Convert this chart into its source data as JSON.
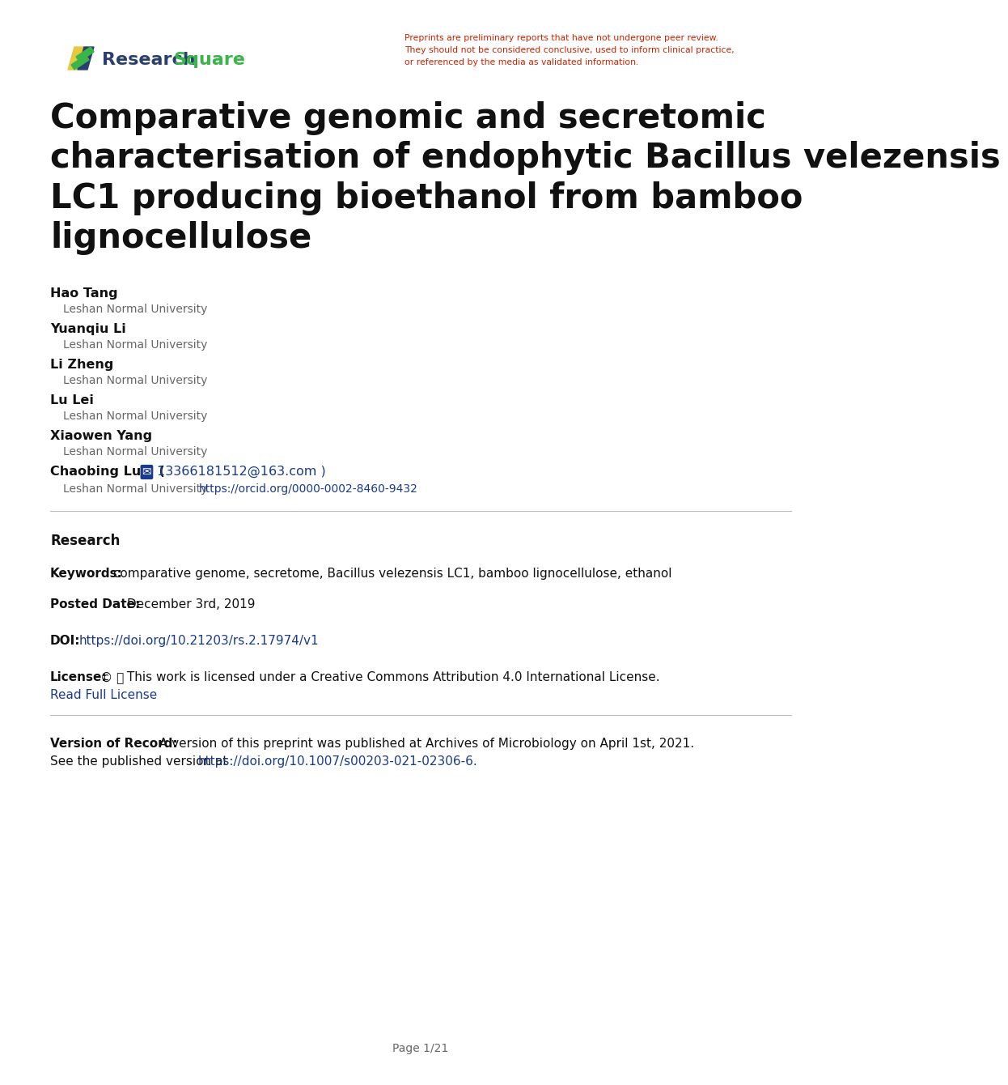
{
  "bg_color": "#ffffff",
  "header_disclaimer": "Preprints are preliminary reports that have not undergone peer review.\nThey should not be considered conclusive, used to inform clinical practice,\nor referenced by the media as validated information.",
  "disclaimer_color": "#cc2200",
  "title_lines": "Comparative genomic and secretomic\ncharacterisation of endophytic Bacillus velezensis\nLC1 producing bioethanol from bamboo\nlignocellulose",
  "title_color": "#111111",
  "title_fontsize": 30,
  "authors": [
    {
      "name": "Hao Tang",
      "affil": "Leshan Normal University"
    },
    {
      "name": "Yuanqiu Li",
      "affil": "Leshan Normal University"
    },
    {
      "name": "Li Zheng",
      "affil": "Leshan Normal University"
    },
    {
      "name": "Lu Lei",
      "affil": "Leshan Normal University"
    },
    {
      "name": "Xiaowen Yang",
      "affil": "Leshan Normal University"
    },
    {
      "name": "Chaobing Luo",
      "affil": "Leshan Normal University",
      "email": "13366181512@163.com",
      "orcid": "https://orcid.org/0000-0002-8460-9432"
    }
  ],
  "author_name_color": "#111111",
  "author_affil_color": "#666666",
  "link_color": "#1a3a8a",
  "section_label": "Research",
  "keywords_label": "Keywords:",
  "keywords_text": " comparative genome, secretome, Bacillus velezensis LC1, bamboo lignocellulose, ethanol",
  "posted_date_label": "Posted Date:",
  "posted_date_text": " December 3rd, 2019",
  "doi_label": "DOI:",
  "doi_text": "https://doi.org/10.21203/rs.2.17974/v1",
  "license_label": "License:",
  "license_text": " This work is licensed under a Creative Commons Attribution 4.0 International License.",
  "read_full_license": "Read Full License",
  "version_label": "Version of Record:",
  "version_text1": " A version of this preprint was published at Archives of Microbiology on April 1st, 2021.",
  "version_text2": "See the published version at ",
  "version_link": "https://doi.org/10.1007/s00203-021-02306-6.",
  "page_footer": "Page 1/21",
  "separator_color": "#bbbbbb",
  "rs_text1": "Research",
  "rs_text2": "Square",
  "rs_text1_color": "#2a3f6e",
  "rs_text2_color": "#3ab54a"
}
